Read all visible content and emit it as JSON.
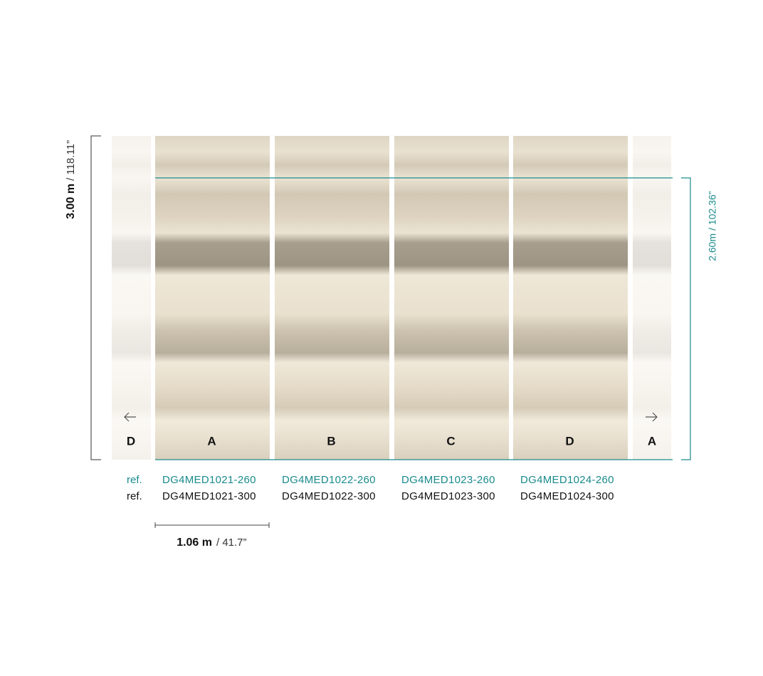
{
  "height_label": {
    "value": "3.00 m",
    "imperial": "/ 118.11”"
  },
  "cut_height_label": {
    "value": "2.60m",
    "imperial": "/ 102.36”"
  },
  "edge_letters": {
    "left": "D",
    "right": "A"
  },
  "ref_labels": {
    "ref_260": "ref.",
    "ref_300": "ref."
  },
  "panels": [
    {
      "letter": "A",
      "ref_260": "DG4MED1021-260",
      "ref_300": "DG4MED1021-300"
    },
    {
      "letter": "B",
      "ref_260": "DG4MED1022-260",
      "ref_300": "DG4MED1022-300"
    },
    {
      "letter": "C",
      "ref_260": "DG4MED1023-260",
      "ref_300": "DG4MED1023-300"
    },
    {
      "letter": "D",
      "ref_260": "DG4MED1024-260",
      "ref_300": "DG4MED1024-300"
    }
  ],
  "width_label": {
    "value": "1.06 m",
    "imperial": "/ 41.7”"
  }
}
